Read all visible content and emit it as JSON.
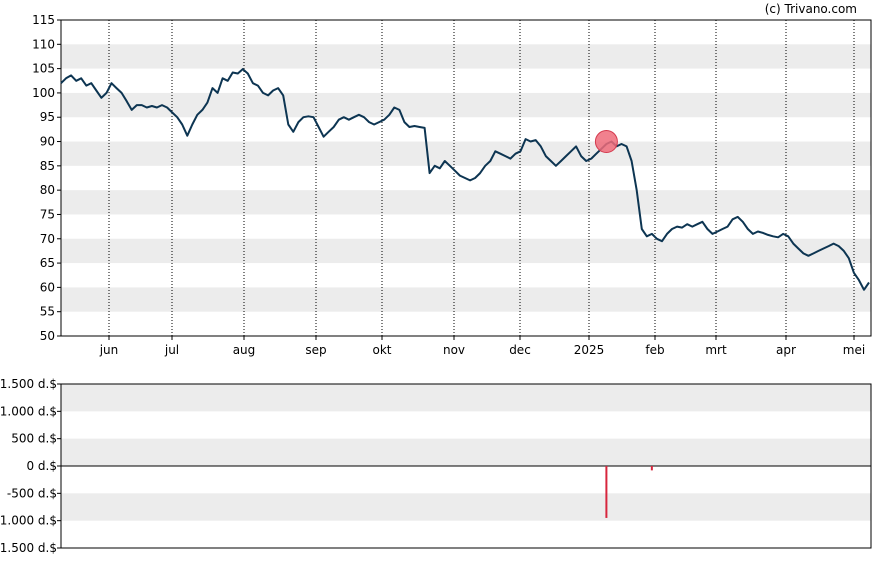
{
  "credit": "(c) Trivano.com",
  "chart_data": [
    {
      "type": "line",
      "series": [
        {
          "color": "#0d3552",
          "values": [
            102,
            103,
            103.6,
            102.5,
            103,
            101.5,
            102,
            100.5,
            99,
            100,
            102,
            101,
            100,
            98.3,
            96.5,
            97.5,
            97.5,
            97,
            97.3,
            97,
            97.5,
            97,
            96,
            95,
            93.5,
            91.2,
            93.5,
            95.5,
            96.5,
            98,
            101,
            100,
            103,
            102.5,
            104.2,
            104,
            104.9,
            104,
            102,
            101.5,
            100,
            99.5,
            100.5,
            101,
            99.5,
            93.5,
            92,
            94,
            95,
            95.2,
            95,
            93,
            91,
            92,
            93,
            94.5,
            95,
            94.5,
            95,
            95.5,
            95,
            94,
            93.5,
            94,
            94.5,
            95.5,
            97,
            96.5,
            94,
            93,
            93.2,
            93,
            92.8,
            83.5,
            85,
            84.5,
            86,
            85,
            84,
            83,
            82.5,
            82,
            82.5,
            83.5,
            85,
            86,
            88,
            87.5,
            87,
            86.5,
            87.5,
            88,
            90.5,
            90,
            90.3,
            89,
            87,
            86,
            85,
            86,
            87,
            88,
            89,
            87,
            86,
            86.5,
            87.5,
            88.5,
            89.5,
            90,
            89,
            89.5,
            89,
            86,
            80,
            72,
            70.5,
            71,
            70,
            69.5,
            71,
            72,
            72.5,
            72.3,
            73,
            72.5,
            73,
            73.5,
            72,
            71,
            71.5,
            72,
            72.5,
            74,
            74.5,
            73.5,
            72,
            71,
            71.5,
            71.2,
            70.8,
            70.5,
            70.3,
            71,
            70.5,
            69,
            68,
            67,
            66.5,
            67,
            67.5,
            68,
            68.5,
            69,
            68.5,
            67.5,
            66,
            63,
            61.5,
            59.5,
            61
          ]
        }
      ],
      "ylim": [
        50,
        115
      ],
      "yticks": [
        "50",
        "55",
        "60",
        "65",
        "70",
        "75",
        "80",
        "85",
        "90",
        "95",
        "100",
        "105",
        "110",
        "115"
      ],
      "xticks": [
        "jun",
        "jul",
        "aug",
        "sep",
        "okt",
        "nov",
        "dec",
        "2025",
        "feb",
        "mrt",
        "apr",
        "mei"
      ],
      "grid": "banded",
      "marker": {
        "index": 108,
        "value": 90,
        "color": "#ee6b7a"
      }
    },
    {
      "type": "bar",
      "ylim": [
        -1500,
        1500
      ],
      "yticks": [
        "-1.500 d.$",
        "-1.000 d.$",
        "-500 d.$",
        "0 d.$",
        "500 d.$",
        "1.000 d.$",
        "1.500 d.$"
      ],
      "bars": [
        {
          "index": 108,
          "value": -950,
          "color": "#d7263d"
        },
        {
          "index": 117,
          "value": -80,
          "color": "#d7263d"
        }
      ],
      "grid": "banded"
    }
  ]
}
